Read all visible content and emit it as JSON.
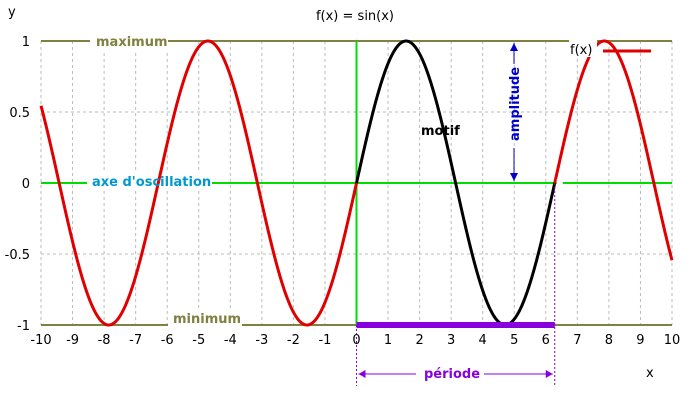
{
  "chart_data": {
    "type": "line",
    "title": "f(x) = sin(x)",
    "xlabel": "x",
    "ylabel": "y",
    "xlim": [
      -10,
      10
    ],
    "ylim": [
      -1,
      1
    ],
    "xticks": [
      "-10",
      "-9",
      "-8",
      "-7",
      "-6",
      "-5",
      "-4",
      "-3",
      "-2",
      "-1",
      "0",
      "1",
      "2",
      "3",
      "4",
      "5",
      "6",
      "7",
      "8",
      "9",
      "10"
    ],
    "yticks": [
      "1",
      "0.5",
      "0",
      "-0.5",
      "-1"
    ],
    "grid": true,
    "legend": {
      "position": "top-right",
      "entries": [
        "f(x)"
      ]
    },
    "series": [
      {
        "name": "f(x)",
        "color": "#e00000",
        "x_range": [
          -10,
          10
        ]
      },
      {
        "color": "#000000",
        "x_range": [
          0,
          6.2832
        ]
      }
    ],
    "reference_lines": [
      {
        "label": "maximum",
        "y": 1,
        "color": "#808040"
      },
      {
        "label": "axe d'oscillation",
        "y": 0,
        "color": "#00dd00"
      },
      {
        "label": "minimum",
        "y": -1,
        "color": "#808040"
      }
    ],
    "annotations": {
      "motif": "motif",
      "amplitude": "amplitude",
      "periode": "période"
    },
    "colors": {
      "curve": "#e00000",
      "motif": "#000000",
      "axes": "#00dd00",
      "bounds": "#808040",
      "axis_label": "#0099cc",
      "amplitude": "#0000cc",
      "periode": "#8800dd"
    }
  }
}
